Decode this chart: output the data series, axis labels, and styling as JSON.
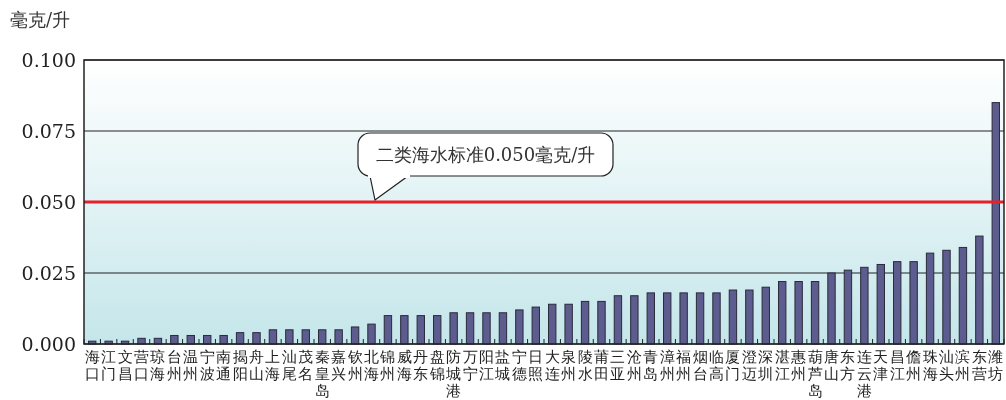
{
  "chart_data": {
    "type": "bar",
    "ylabel": "毫克/升",
    "categories": [
      "海口",
      "江门",
      "文昌",
      "营口",
      "琼海",
      "台州",
      "温州",
      "宁波",
      "南通",
      "揭阳",
      "舟山",
      "上海",
      "汕尾",
      "茂名",
      "秦皇岛",
      "嘉兴",
      "钦州",
      "北海",
      "锦州",
      "威海",
      "丹东",
      "盘锦",
      "防城港",
      "万宁",
      "阳江",
      "盐城",
      "宁德",
      "日照",
      "大连",
      "泉州",
      "陵水",
      "莆田",
      "三亚",
      "沧州",
      "青岛",
      "漳州",
      "福州",
      "烟台",
      "临高",
      "厦门",
      "澄迈",
      "深圳",
      "湛江",
      "惠州",
      "葫芦岛",
      "唐山",
      "东方",
      "连云港",
      "天津",
      "昌江",
      "儋州",
      "珠海",
      "汕头",
      "滨州",
      "东营",
      "潍坊"
    ],
    "values": [
      0.001,
      0.001,
      0.001,
      0.002,
      0.002,
      0.003,
      0.003,
      0.003,
      0.003,
      0.004,
      0.004,
      0.005,
      0.005,
      0.005,
      0.005,
      0.005,
      0.006,
      0.007,
      0.01,
      0.01,
      0.01,
      0.01,
      0.011,
      0.011,
      0.011,
      0.011,
      0.012,
      0.013,
      0.014,
      0.014,
      0.015,
      0.015,
      0.017,
      0.017,
      0.018,
      0.018,
      0.018,
      0.018,
      0.018,
      0.019,
      0.019,
      0.02,
      0.022,
      0.022,
      0.022,
      0.025,
      0.026,
      0.027,
      0.028,
      0.029,
      0.029,
      0.032,
      0.033,
      0.034,
      0.038,
      0.085
    ],
    "color": "#5c5c8e",
    "ylim": [
      0,
      0.1
    ],
    "yticks": [
      {
        "value": 0,
        "label": "0.000"
      },
      0.025,
      {
        "value": 0.05,
        "label": "0.050"
      },
      0.075,
      {
        "value": 0.1,
        "label": "0.100"
      }
    ],
    "grid": "y",
    "ref_lines": [
      {
        "axis": "y",
        "value": 0.05,
        "label": "二类海水标准0.050毫克/升",
        "color": "#e8202a"
      }
    ]
  }
}
